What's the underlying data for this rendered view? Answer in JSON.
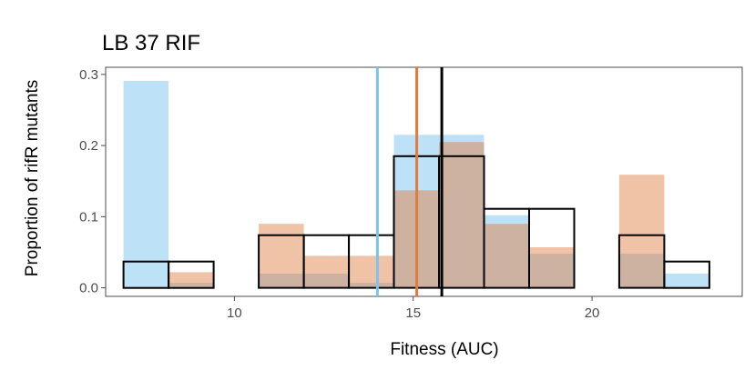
{
  "chart_data": {
    "type": "bar",
    "title": "LB 37 RIF",
    "xlabel": "Fitness (AUC)",
    "ylabel": "Proportion of rifR mutants",
    "xlim": [
      6.4,
      24.2
    ],
    "ylim": [
      -0.012,
      0.31
    ],
    "x_ticks": [
      10,
      15,
      20
    ],
    "y_ticks": [
      0.0,
      0.1,
      0.2,
      0.3
    ],
    "y_tick_labels": [
      "0.0",
      "0.1",
      "0.2",
      "0.3"
    ],
    "grid": false,
    "bins": [
      [
        6.9,
        8.16
      ],
      [
        8.16,
        9.42
      ],
      [
        9.42,
        10.68
      ],
      [
        10.68,
        11.94
      ],
      [
        11.94,
        13.2
      ],
      [
        13.2,
        14.46
      ],
      [
        14.46,
        15.72
      ],
      [
        15.72,
        16.98
      ],
      [
        16.98,
        18.24
      ],
      [
        18.24,
        19.5
      ],
      [
        19.5,
        20.76
      ],
      [
        20.76,
        22.02
      ],
      [
        22.02,
        23.28
      ],
      [
        23.28,
        23.54
      ]
    ],
    "series": [
      {
        "color": "#7cc3ee",
        "style": "fill",
        "opacity": 0.5,
        "values": [
          0.291,
          0.007,
          0.0,
          0.02,
          0.02,
          0.007,
          0.215,
          0.215,
          0.102,
          0.048,
          0.0,
          0.048,
          0.02,
          0.0
        ],
        "mean": 14.0
      },
      {
        "color": "#e07b39",
        "style": "fill",
        "opacity": 0.45,
        "values": [
          0.0,
          0.022,
          0.0,
          0.09,
          0.045,
          0.045,
          0.137,
          0.205,
          0.09,
          0.057,
          0.0,
          0.159,
          0.0,
          0.0
        ],
        "mean": 15.1
      },
      {
        "color": "#000000",
        "style": "outline",
        "values": [
          0.037,
          0.037,
          0.0,
          0.074,
          0.074,
          0.074,
          0.185,
          0.185,
          0.111,
          0.111,
          0.0,
          0.074,
          0.037,
          0.0
        ],
        "mean": 15.8
      }
    ]
  }
}
